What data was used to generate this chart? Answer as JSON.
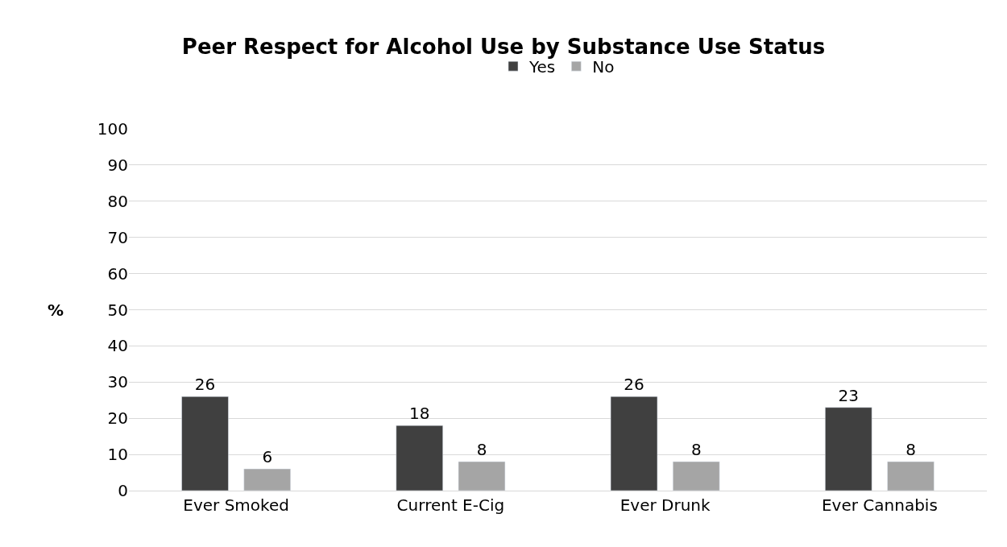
{
  "chart_data": {
    "type": "bar",
    "title": "Peer Respect for Alcohol Use by Substance Use Status",
    "ylabel": "%",
    "categories": [
      "Ever Smoked",
      "Current E-Cig",
      "Ever Drunk",
      "Ever Cannabis"
    ],
    "series": [
      {
        "name": "Yes",
        "color": "#404040",
        "values": [
          26,
          18,
          26,
          23
        ]
      },
      {
        "name": "No",
        "color": "#a5a5a5",
        "values": [
          6,
          8,
          8,
          8
        ]
      }
    ],
    "ylim": [
      0,
      100
    ],
    "yticks": [
      0,
      10,
      20,
      30,
      40,
      50,
      60,
      70,
      80,
      90,
      100
    ],
    "grid": "y",
    "legend": "top",
    "data_labels": true
  }
}
